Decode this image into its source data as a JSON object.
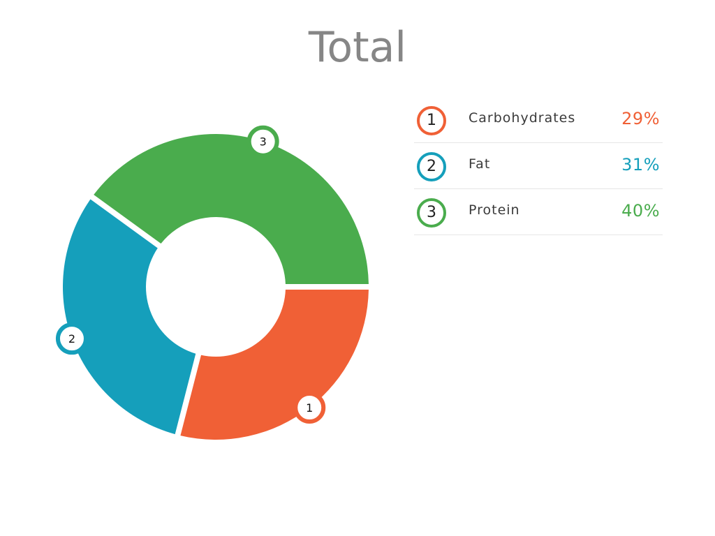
{
  "title": "Total",
  "chart_data": {
    "type": "pie",
    "variant": "donut",
    "title": "Total",
    "slices": [
      {
        "number": "1",
        "label": "Carbohydrates",
        "value": 29,
        "display": "29%",
        "color": "#f06036"
      },
      {
        "number": "2",
        "label": "Fat",
        "value": 31,
        "display": "31%",
        "color": "#159fbb"
      },
      {
        "number": "3",
        "label": "Protein",
        "value": 40,
        "display": "40%",
        "color": "#4aac4d"
      }
    ],
    "legend_position": "right"
  }
}
